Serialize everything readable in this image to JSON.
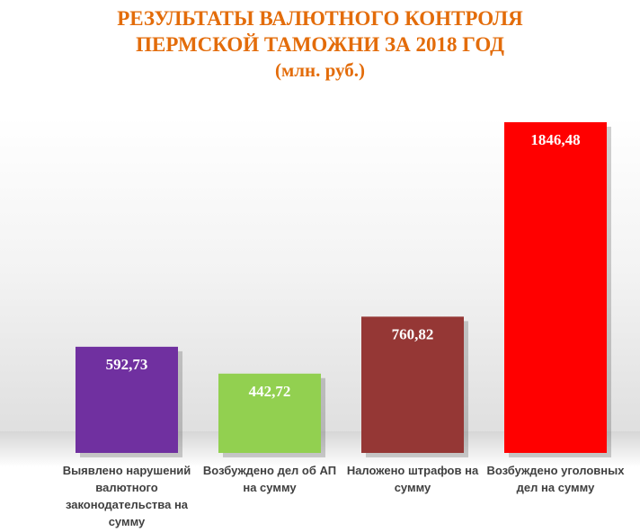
{
  "title": {
    "line1": "РЕЗУЛЬТАТЫ ВАЛЮТНОГО КОНТРОЛЯ",
    "line2": "ПЕРМСКОЙ ТАМОЖНИ ЗА 2018 ГОД",
    "line3": "(млн. руб.)"
  },
  "chart_data": {
    "type": "bar",
    "categories": [
      "Выявлено нарушений валютного законодательства на сумму",
      "Возбуждено дел об АП на сумму",
      "Наложено штрафов на сумму",
      "Возбуждено уголовных дел на сумму"
    ],
    "values": [
      592.73,
      442.72,
      760.82,
      1846.48
    ],
    "value_labels": [
      "592,73",
      "442,72",
      "760,82",
      "1846,48"
    ],
    "colors": [
      "#7030a0",
      "#92d050",
      "#953735",
      "#ff0000"
    ],
    "title": "РЕЗУЛЬТАТЫ ВАЛЮТНОГО КОНТРОЛЯ ПЕРМСКОЙ ТАМОЖНИ ЗА 2018 ГОД (млн. руб.)",
    "ylim": [
      0,
      1846.48
    ],
    "grid": false,
    "legend": "none"
  }
}
